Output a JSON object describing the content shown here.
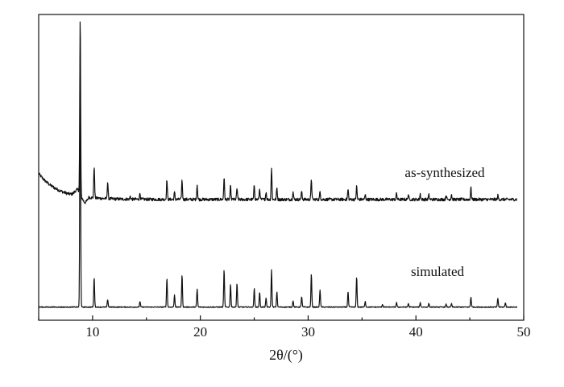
{
  "chart_data": {
    "type": "line",
    "title": "",
    "xlabel": "2θ/(°)",
    "ylabel": "",
    "xlim": [
      5,
      50
    ],
    "ylim": [
      0,
      1
    ],
    "x_ticks": [
      10,
      20,
      30,
      40,
      50
    ],
    "x_tick_labels": [
      "10",
      "20",
      "30",
      "40",
      "50"
    ],
    "y_ticks_visible": false,
    "grid": false,
    "legend": "none",
    "line_color": "#111111",
    "series": [
      {
        "name": "as-synthesized",
        "baseline_start": 0.48,
        "baseline_decay": 0.4,
        "baseline_decay_rate": 1.2,
        "baseline_end": 0.395,
        "peaks": [
          {
            "x": 8.85,
            "y": 0.97
          },
          {
            "x": 10.15,
            "y": 0.5
          },
          {
            "x": 11.4,
            "y": 0.45
          },
          {
            "x": 13.5,
            "y": 0.405
          },
          {
            "x": 14.4,
            "y": 0.415
          },
          {
            "x": 16.9,
            "y": 0.46
          },
          {
            "x": 17.6,
            "y": 0.418
          },
          {
            "x": 18.3,
            "y": 0.458
          },
          {
            "x": 19.7,
            "y": 0.443
          },
          {
            "x": 22.2,
            "y": 0.467
          },
          {
            "x": 22.8,
            "y": 0.438
          },
          {
            "x": 23.4,
            "y": 0.432
          },
          {
            "x": 25.0,
            "y": 0.442
          },
          {
            "x": 25.5,
            "y": 0.43
          },
          {
            "x": 26.1,
            "y": 0.42
          },
          {
            "x": 26.6,
            "y": 0.497
          },
          {
            "x": 27.1,
            "y": 0.433
          },
          {
            "x": 28.6,
            "y": 0.42
          },
          {
            "x": 29.4,
            "y": 0.423
          },
          {
            "x": 30.3,
            "y": 0.462
          },
          {
            "x": 31.1,
            "y": 0.42
          },
          {
            "x": 33.7,
            "y": 0.428
          },
          {
            "x": 34.5,
            "y": 0.438
          },
          {
            "x": 35.3,
            "y": 0.41
          },
          {
            "x": 38.2,
            "y": 0.415
          },
          {
            "x": 39.3,
            "y": 0.411
          },
          {
            "x": 40.4,
            "y": 0.413
          },
          {
            "x": 41.2,
            "y": 0.41
          },
          {
            "x": 42.8,
            "y": 0.41
          },
          {
            "x": 43.3,
            "y": 0.412
          },
          {
            "x": 45.1,
            "y": 0.433
          },
          {
            "x": 47.6,
            "y": 0.408
          }
        ]
      },
      {
        "name": "simulated",
        "baseline_start": 0.043,
        "baseline_decay": 0.0,
        "baseline_decay_rate": 1.0,
        "baseline_end": 0.043,
        "peaks": [
          {
            "x": 8.85,
            "y": 0.895
          },
          {
            "x": 10.15,
            "y": 0.14
          },
          {
            "x": 11.4,
            "y": 0.068
          },
          {
            "x": 14.4,
            "y": 0.062
          },
          {
            "x": 16.9,
            "y": 0.137
          },
          {
            "x": 17.6,
            "y": 0.083
          },
          {
            "x": 18.3,
            "y": 0.148
          },
          {
            "x": 19.7,
            "y": 0.102
          },
          {
            "x": 22.2,
            "y": 0.165
          },
          {
            "x": 22.8,
            "y": 0.118
          },
          {
            "x": 23.4,
            "y": 0.12
          },
          {
            "x": 25.0,
            "y": 0.104
          },
          {
            "x": 25.5,
            "y": 0.092
          },
          {
            "x": 26.1,
            "y": 0.072
          },
          {
            "x": 26.6,
            "y": 0.164
          },
          {
            "x": 27.1,
            "y": 0.093
          },
          {
            "x": 28.6,
            "y": 0.063
          },
          {
            "x": 29.4,
            "y": 0.078
          },
          {
            "x": 30.3,
            "y": 0.152
          },
          {
            "x": 31.1,
            "y": 0.1
          },
          {
            "x": 33.7,
            "y": 0.093
          },
          {
            "x": 34.5,
            "y": 0.142
          },
          {
            "x": 35.3,
            "y": 0.062
          },
          {
            "x": 36.9,
            "y": 0.052
          },
          {
            "x": 38.2,
            "y": 0.058
          },
          {
            "x": 39.3,
            "y": 0.055
          },
          {
            "x": 40.4,
            "y": 0.058
          },
          {
            "x": 41.2,
            "y": 0.055
          },
          {
            "x": 42.8,
            "y": 0.052
          },
          {
            "x": 43.3,
            "y": 0.054
          },
          {
            "x": 45.1,
            "y": 0.076
          },
          {
            "x": 47.6,
            "y": 0.072
          },
          {
            "x": 48.3,
            "y": 0.058
          }
        ]
      }
    ]
  }
}
